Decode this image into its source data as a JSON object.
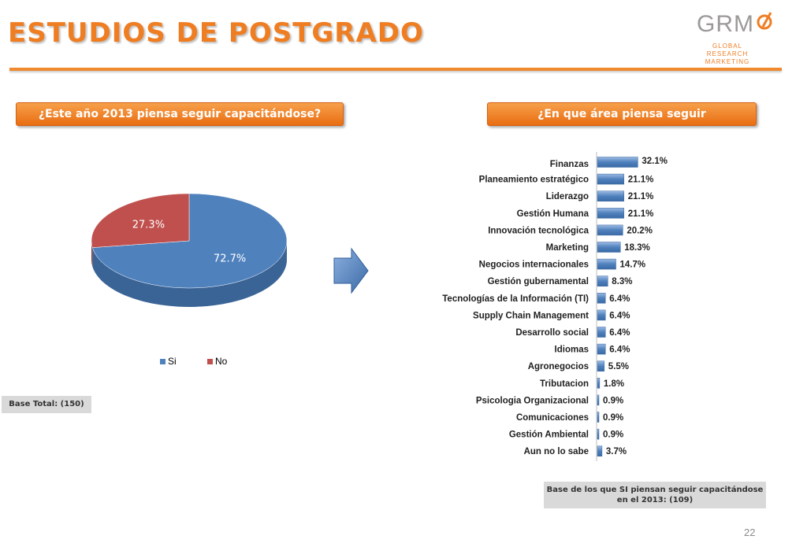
{
  "header": {
    "title": "ESTUDIOS DE POSTGRADO"
  },
  "logo": {
    "letters": "GRM",
    "line1": "GLOBAL RESEARCH",
    "line2": "MARKETING"
  },
  "questions": {
    "left": "¿Este año 2013 piensa seguir capacitándose?",
    "right": "¿En que área piensa seguir capacitándose?"
  },
  "bases": {
    "left": "Base Total: (150)",
    "right": "Base de los que SI piensan seguir capacitándose en el 2013: (109)"
  },
  "page_number": "22",
  "colors": {
    "accent": "#ef7d22",
    "si": "#4f81bd",
    "no": "#c0504d"
  },
  "chart_data": [
    {
      "type": "pie",
      "categories": [
        "Si",
        "No"
      ],
      "values": [
        72.7,
        27.3
      ],
      "labels": [
        "72.7%",
        "27.3%"
      ],
      "legend": [
        "Si",
        "No"
      ],
      "legend_position": "bottom"
    },
    {
      "type": "bar",
      "orientation": "horizontal",
      "categories": [
        "Finanzas",
        "Planeamiento estratégico",
        "Liderazgo",
        "Gestión Humana",
        "Innovación tecnológica",
        "Marketing",
        "Negocios internacionales",
        "Gestión gubernamental",
        "Tecnologías de la Información (TI)",
        "Supply Chain Management",
        "Desarrollo social",
        "Idiomas",
        "Agronegocios",
        "Tributacion",
        "Psicologia Organizacional",
        "Comunicaciones",
        "Gestión Ambiental",
        "Aun no lo sabe"
      ],
      "values": [
        32.1,
        21.1,
        21.1,
        21.1,
        20.2,
        18.3,
        14.7,
        8.3,
        6.4,
        6.4,
        6.4,
        6.4,
        5.5,
        1.8,
        0.9,
        0.9,
        0.9,
        3.7
      ],
      "labels": [
        "32.1%",
        "21.1%",
        "21.1%",
        "21.1%",
        "20.2%",
        "18.3%",
        "14.7%",
        "8.3%",
        "6.4%",
        "6.4%",
        "6.4%",
        "6.4%",
        "5.5%",
        "1.8%",
        "0.9%",
        "0.9%",
        "0.9%",
        "3.7%"
      ]
    }
  ]
}
